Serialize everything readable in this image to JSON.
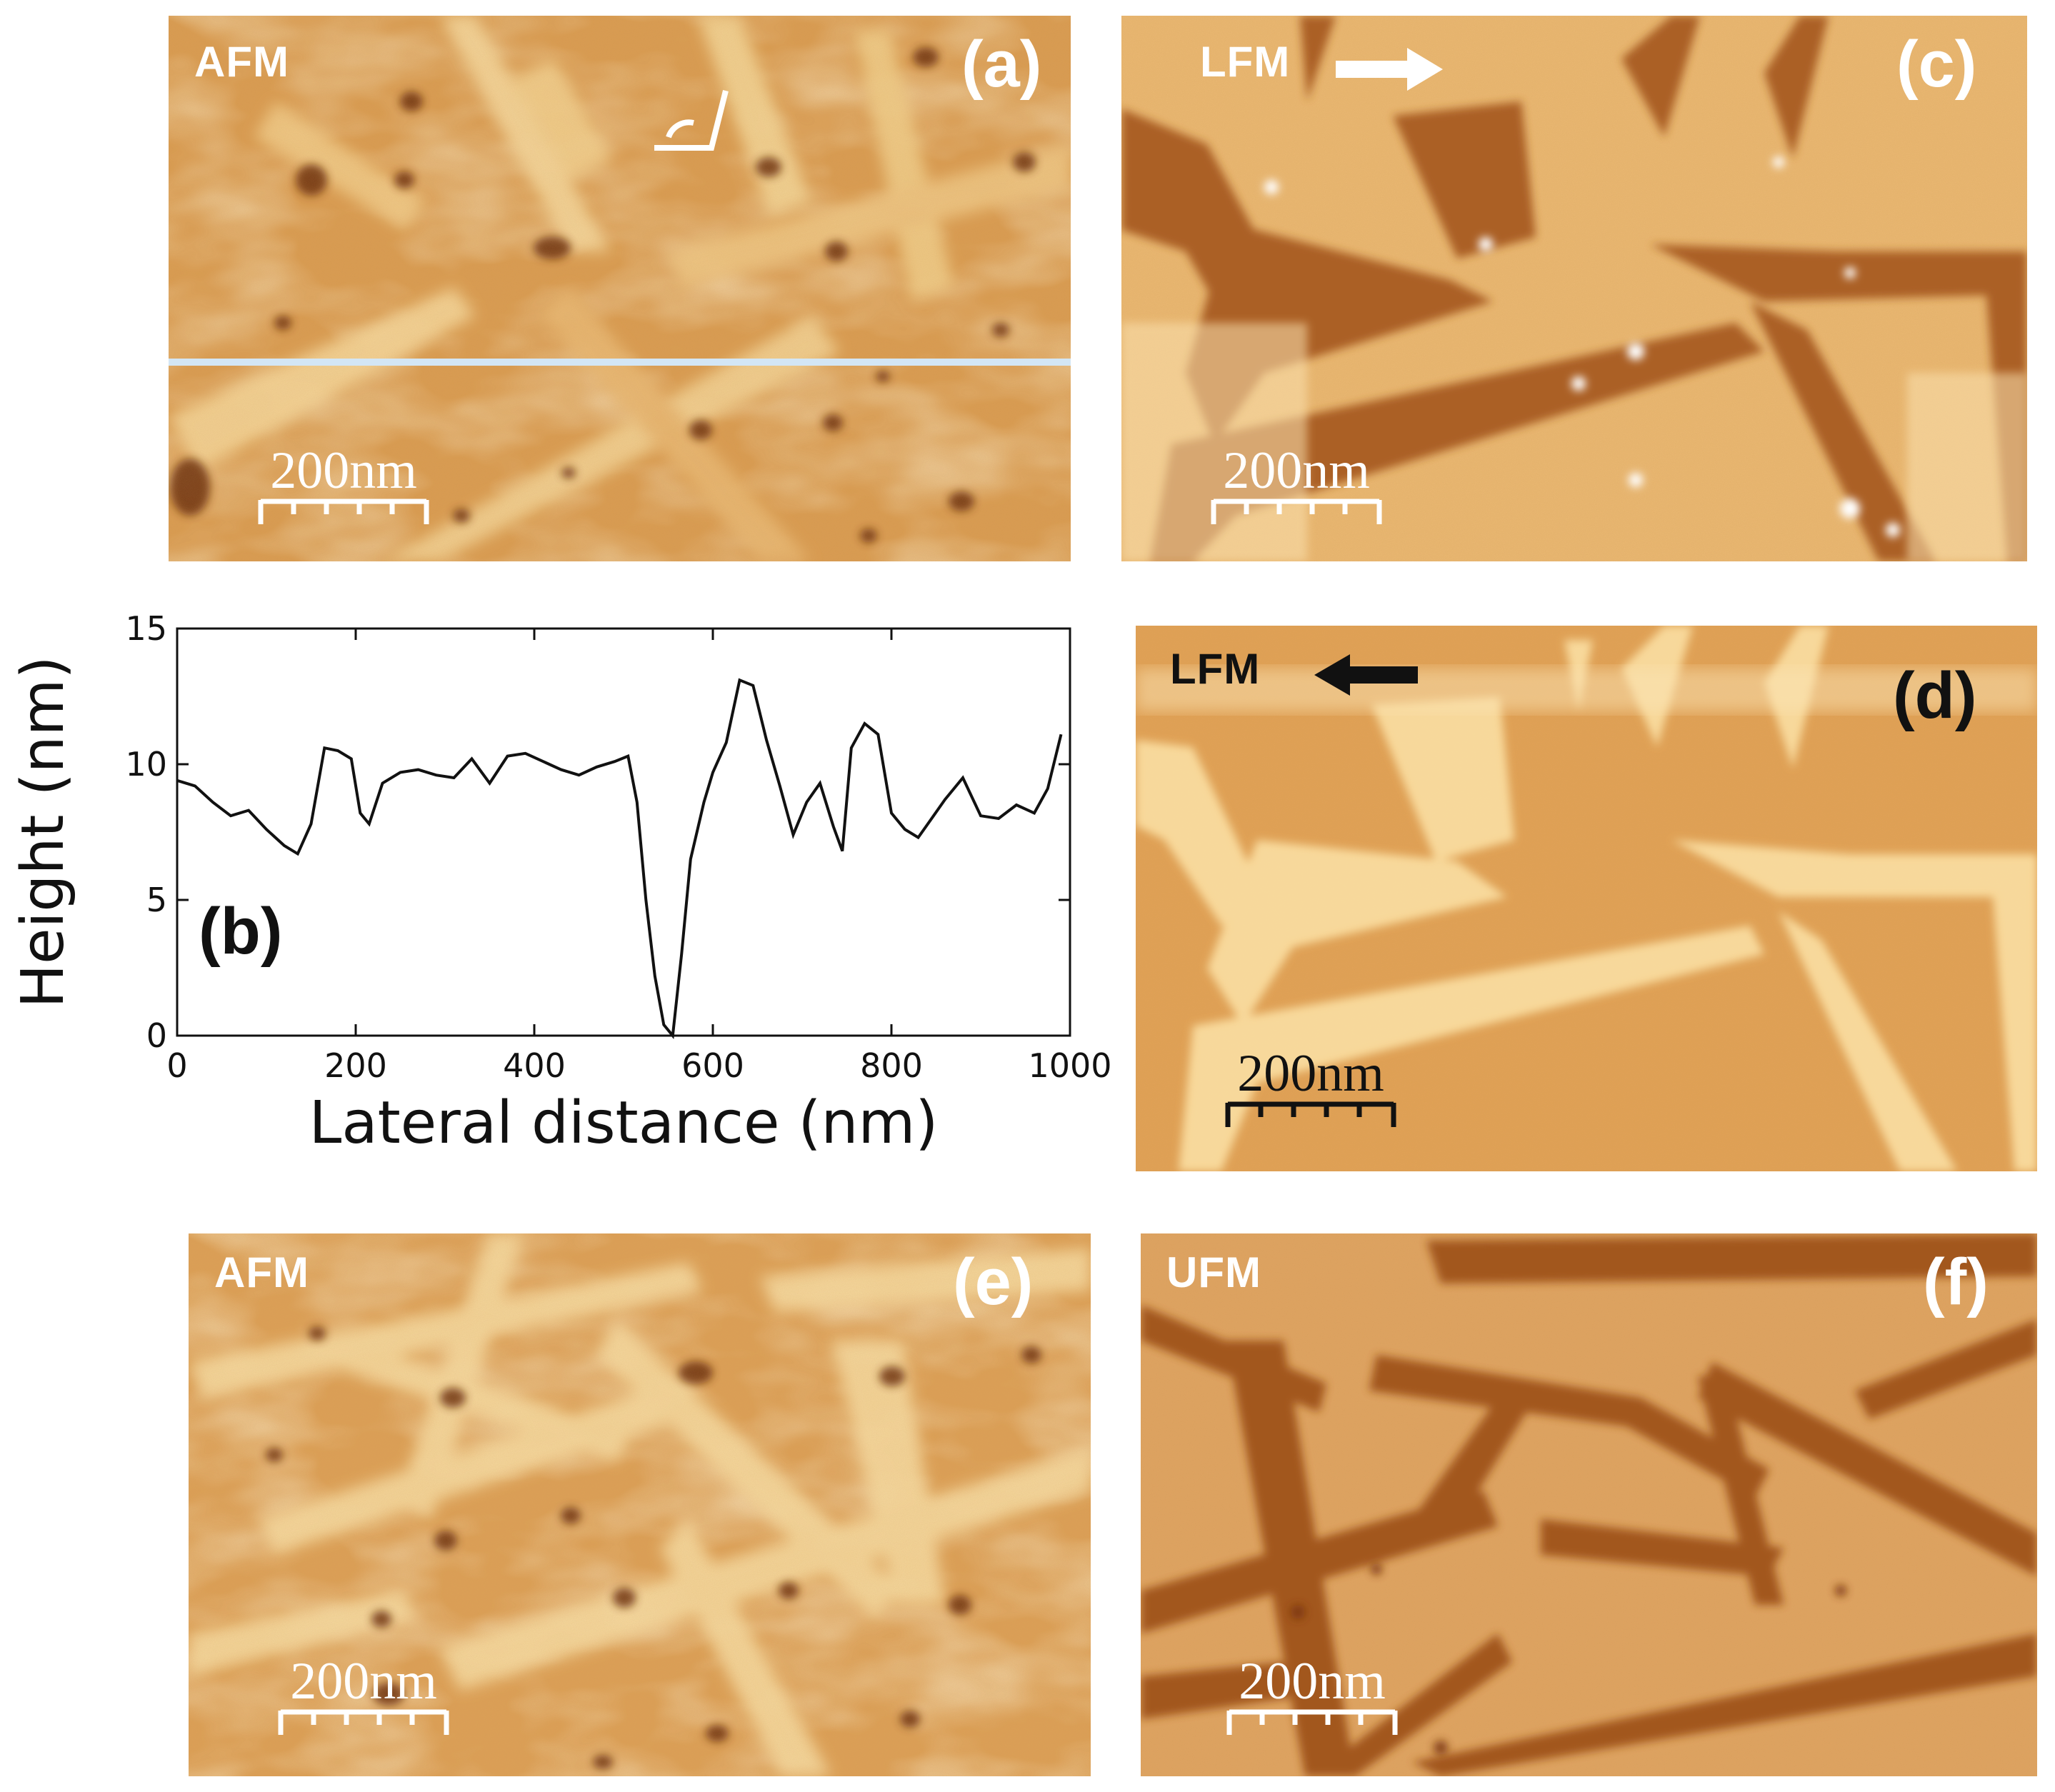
{
  "panels": {
    "a": {
      "label": "(a)",
      "mode": "AFM",
      "scale_bar": "200nm"
    },
    "b": {
      "label": "(b)"
    },
    "c": {
      "label": "(c)",
      "mode": "LFM",
      "scale_bar": "200nm",
      "arrow": "right-arrow-icon"
    },
    "d": {
      "label": "(d)",
      "mode": "LFM",
      "scale_bar": "200nm",
      "arrow": "left-arrow-icon"
    },
    "e": {
      "label": "(e)",
      "mode": "AFM",
      "scale_bar": "200nm"
    },
    "f": {
      "label": "(f)",
      "mode": "UFM",
      "scale_bar": "200nm"
    }
  },
  "colors": {
    "afm_base": "#d89a4e",
    "afm_dark": "#7a3c10",
    "afm_light": "#f6d9a0",
    "lfm_c_base": "#e8b46e",
    "lfm_c_dark": "#a55a20",
    "lfm_d_base": "#e2a356",
    "lfm_d_light": "#f8d99c",
    "ufm_base": "#dca060",
    "ufm_dark": "#9a4e1a",
    "line_cut": "#cfe4f4"
  },
  "chart_data": {
    "type": "line",
    "title": "",
    "xlabel": "Lateral distance (nm)",
    "ylabel": "Height (nm)",
    "xlim": [
      0,
      1000
    ],
    "ylim": [
      0,
      15
    ],
    "xticks": [
      "0",
      "200",
      "400",
      "600",
      "800",
      "1000"
    ],
    "yticks": [
      "0",
      "5",
      "10",
      "15"
    ],
    "series": [
      {
        "x": [
          0,
          20,
          40,
          60,
          80,
          100,
          120,
          135,
          150,
          165,
          180,
          195,
          205,
          215,
          230,
          250,
          270,
          290,
          310,
          330,
          350,
          370,
          390,
          410,
          430,
          450,
          470,
          490,
          505,
          515,
          525,
          535,
          545,
          555,
          565,
          575,
          590,
          600,
          615,
          630,
          645,
          660,
          675,
          690,
          705,
          720,
          735,
          745,
          755,
          770,
          785,
          800,
          815,
          830,
          845,
          860,
          880,
          900,
          920,
          940,
          960,
          975,
          990
        ],
        "y": [
          9.4,
          9.2,
          8.6,
          8.1,
          8.3,
          7.6,
          7.0,
          6.7,
          7.8,
          10.6,
          10.5,
          10.2,
          8.2,
          7.8,
          9.3,
          9.7,
          9.8,
          9.6,
          9.5,
          10.2,
          9.3,
          10.3,
          10.4,
          10.1,
          9.8,
          9.6,
          9.9,
          10.1,
          10.3,
          8.6,
          5.0,
          2.2,
          0.4,
          0.0,
          3.0,
          6.5,
          8.6,
          9.7,
          10.8,
          13.1,
          12.9,
          10.9,
          9.2,
          7.4,
          8.6,
          9.3,
          7.7,
          6.8,
          10.6,
          11.5,
          11.1,
          8.2,
          7.6,
          7.3,
          8.0,
          8.7,
          9.5,
          8.1,
          8.0,
          8.5,
          8.2,
          9.1,
          11.1
        ]
      }
    ],
    "grid": false
  }
}
